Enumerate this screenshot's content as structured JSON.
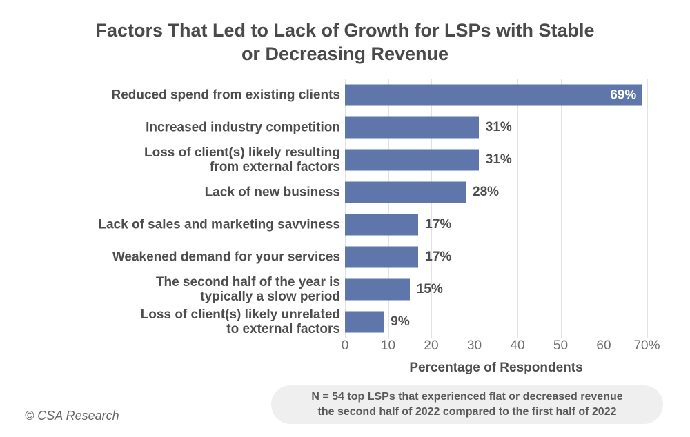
{
  "page": {
    "title_line1": "Factors That Led to Lack of Growth for LSPs with Stable",
    "title_line2": "or Decreasing Revenue",
    "footnote_line1": "N = 54 top LSPs that experienced flat or decreased revenue",
    "footnote_line2": "the second half of 2022 compared to the first half of 2022",
    "copyright": "© CSA Research"
  },
  "colors": {
    "bar": "#5e76a9",
    "grid": "#e2e2e2",
    "title_text": "#4a4a4a",
    "label_text": "#4d4d4d",
    "tick_text": "#6e6e6e",
    "footnote_bg": "#efefef",
    "footnote_text": "#595959",
    "value_inside_text": "#ffffff"
  },
  "chart_data": {
    "type": "bar",
    "orientation": "horizontal",
    "title": "Factors That Led to Lack of Growth for LSPs with Stable or Decreasing Revenue",
    "xlabel": "Percentage of Respondents",
    "xlim": [
      0,
      70
    ],
    "xticks": [
      "0",
      "10",
      "20",
      "30",
      "40",
      "50",
      "60",
      "70%"
    ],
    "grid": true,
    "legend_position": "none",
    "categories": [
      "Reduced spend from existing clients",
      "Increased industry competition",
      "Loss of client(s) likely resulting\nfrom external factors",
      "Lack of new business",
      "Lack of sales and marketing savviness",
      "Weakened demand for your services",
      "The second half of the year is\ntypically a slow period",
      "Loss of client(s) likely unrelated\nto external factors"
    ],
    "values": [
      69,
      31,
      31,
      28,
      17,
      17,
      15,
      9
    ],
    "value_labels": [
      "69%",
      "31%",
      "31%",
      "28%",
      "17%",
      "17%",
      "15%",
      "9%"
    ]
  }
}
